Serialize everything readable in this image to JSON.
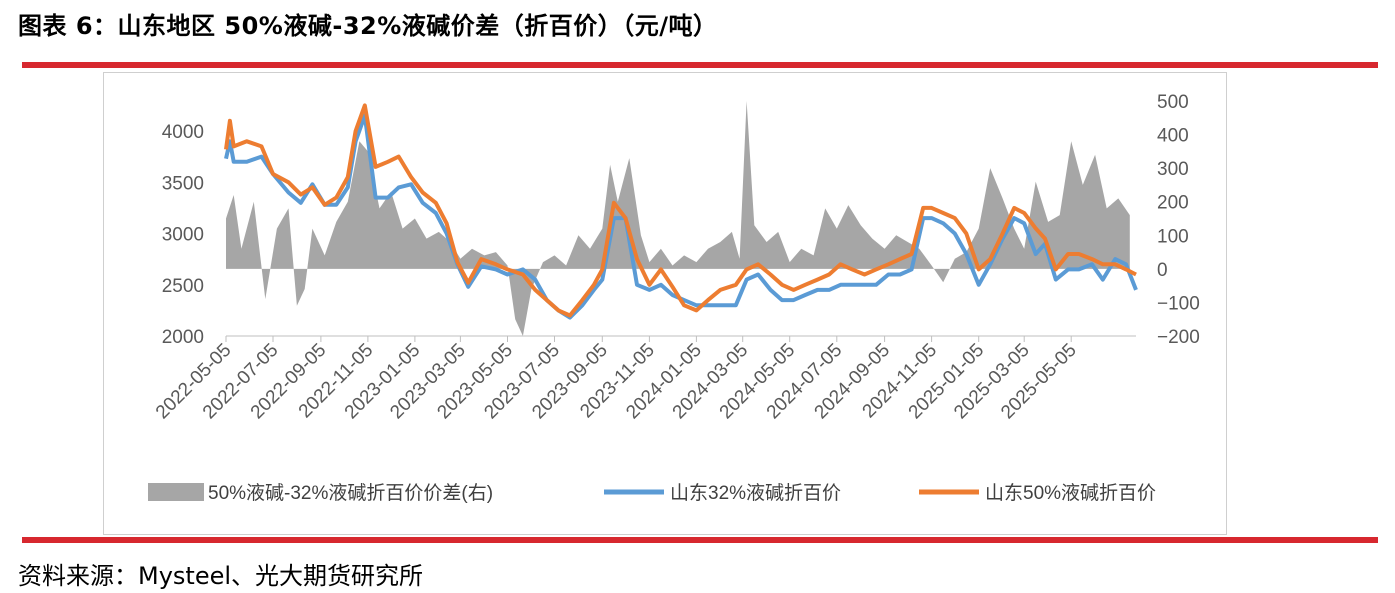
{
  "header": {
    "title": "图表 6：山东地区 50%液碱-32%液碱价差（折百价）（元/吨）"
  },
  "footer": {
    "source": "资料来源：Mysteel、光大期货研究所"
  },
  "colors": {
    "accent_rule": "#d7282f",
    "spread_area": "#a6a6a6",
    "line_32": "#5b9bd5",
    "line_50": "#ed7d31"
  },
  "chart_data": {
    "type": "line",
    "title": "",
    "xlabel": "",
    "ylabel": "",
    "y_left": {
      "range": [
        2000,
        4300
      ],
      "ticks": [
        "2000",
        "2500",
        "3000",
        "3500",
        "4000"
      ]
    },
    "y_right": {
      "range": [
        -200,
        500
      ],
      "ticks": [
        "-200",
        "-100",
        "0",
        "100",
        "200",
        "300",
        "400",
        "500"
      ]
    },
    "x_range": [
      "2022-05-05",
      "2025-07-28"
    ],
    "x_ticks": [
      "2022-05-05",
      "2022-07-05",
      "2022-09-05",
      "2022-11-05",
      "2023-01-05",
      "2023-03-05",
      "2023-05-05",
      "2023-07-05",
      "2023-09-05",
      "2023-11-05",
      "2024-01-05",
      "2024-03-05",
      "2024-05-05",
      "2024-07-05",
      "2024-09-05",
      "2024-11-05",
      "2025-01-05",
      "2025-03-05",
      "2025-05-05"
    ],
    "legend_position": "bottom",
    "grid": false,
    "series": [
      {
        "name": "50%液碱-32%液碱折百价价差(右)",
        "type": "area",
        "axis": "right",
        "x": [
          "2022-05-05",
          "2022-05-15",
          "2022-05-25",
          "2022-06-10",
          "2022-06-25",
          "2022-07-10",
          "2022-07-25",
          "2022-08-05",
          "2022-08-15",
          "2022-08-25",
          "2022-09-10",
          "2022-09-25",
          "2022-10-10",
          "2022-10-25",
          "2022-11-05",
          "2022-11-20",
          "2022-12-05",
          "2022-12-20",
          "2023-01-05",
          "2023-01-20",
          "2023-02-05",
          "2023-02-20",
          "2023-03-05",
          "2023-03-20",
          "2023-04-05",
          "2023-04-20",
          "2023-05-05",
          "2023-05-15",
          "2023-05-25",
          "2023-06-05",
          "2023-06-20",
          "2023-07-05",
          "2023-07-20",
          "2023-08-05",
          "2023-08-20",
          "2023-09-05",
          "2023-09-15",
          "2023-09-25",
          "2023-10-10",
          "2023-10-25",
          "2023-11-05",
          "2023-11-20",
          "2023-12-05",
          "2023-12-20",
          "2024-01-05",
          "2024-01-20",
          "2024-02-05",
          "2024-02-20",
          "2024-03-01",
          "2024-03-10",
          "2024-03-20",
          "2024-04-05",
          "2024-04-20",
          "2024-05-05",
          "2024-05-20",
          "2024-06-05",
          "2024-06-20",
          "2024-07-05",
          "2024-07-20",
          "2024-08-05",
          "2024-08-20",
          "2024-09-05",
          "2024-09-20",
          "2024-10-05",
          "2024-10-20",
          "2024-11-05",
          "2024-11-20",
          "2024-12-05",
          "2024-12-20",
          "2025-01-05",
          "2025-01-20",
          "2025-02-05",
          "2025-02-20",
          "2025-03-05",
          "2025-03-20",
          "2025-04-05",
          "2025-04-20",
          "2025-05-05",
          "2025-05-20",
          "2025-06-05",
          "2025-06-20",
          "2025-07-05",
          "2025-07-20"
        ],
        "values": [
          150,
          220,
          60,
          200,
          -90,
          120,
          180,
          -110,
          -60,
          120,
          40,
          140,
          200,
          380,
          350,
          180,
          230,
          120,
          150,
          90,
          110,
          80,
          30,
          60,
          40,
          50,
          10,
          -150,
          -200,
          -60,
          20,
          40,
          10,
          100,
          60,
          120,
          310,
          200,
          330,
          100,
          20,
          60,
          10,
          40,
          20,
          60,
          80,
          110,
          30,
          500,
          130,
          80,
          110,
          20,
          60,
          40,
          180,
          120,
          190,
          130,
          90,
          60,
          100,
          80,
          60,
          10,
          -40,
          30,
          50,
          120,
          300,
          210,
          120,
          60,
          260,
          140,
          160,
          380,
          250,
          340,
          180,
          210,
          160
        ]
      },
      {
        "name": "山东32%液碱折百价",
        "type": "line",
        "axis": "left",
        "x": [
          "2022-05-05",
          "2022-05-10",
          "2022-05-15",
          "2022-06-01",
          "2022-06-20",
          "2022-07-05",
          "2022-07-25",
          "2022-08-10",
          "2022-08-25",
          "2022-09-10",
          "2022-09-25",
          "2022-10-10",
          "2022-10-20",
          "2022-11-01",
          "2022-11-15",
          "2022-12-01",
          "2022-12-15",
          "2022-12-31",
          "2023-01-15",
          "2023-02-01",
          "2023-02-15",
          "2023-03-01",
          "2023-03-15",
          "2023-04-01",
          "2023-04-20",
          "2023-05-05",
          "2023-05-25",
          "2023-06-10",
          "2023-06-25",
          "2023-07-10",
          "2023-07-25",
          "2023-08-10",
          "2023-08-25",
          "2023-09-05",
          "2023-09-20",
          "2023-10-05",
          "2023-10-20",
          "2023-11-05",
          "2023-11-20",
          "2023-12-05",
          "2023-12-20",
          "2024-01-05",
          "2024-01-20",
          "2024-02-05",
          "2024-02-25",
          "2024-03-10",
          "2024-03-25",
          "2024-04-10",
          "2024-04-25",
          "2024-05-10",
          "2024-05-25",
          "2024-06-10",
          "2024-06-25",
          "2024-07-10",
          "2024-07-25",
          "2024-08-10",
          "2024-08-25",
          "2024-09-10",
          "2024-09-25",
          "2024-10-10",
          "2024-10-25",
          "2024-11-05",
          "2024-11-20",
          "2024-12-05",
          "2024-12-20",
          "2025-01-05",
          "2025-01-20",
          "2025-02-05",
          "2025-02-20",
          "2025-03-05",
          "2025-03-20",
          "2025-04-01",
          "2025-04-15",
          "2025-05-01",
          "2025-05-15",
          "2025-06-01",
          "2025-06-15",
          "2025-07-01",
          "2025-07-15",
          "2025-07-28"
        ],
        "values": [
          3730,
          3900,
          3700,
          3700,
          3750,
          3580,
          3400,
          3300,
          3480,
          3280,
          3280,
          3450,
          3900,
          4150,
          3350,
          3350,
          3450,
          3480,
          3300,
          3200,
          3000,
          2700,
          2480,
          2680,
          2650,
          2600,
          2650,
          2550,
          2350,
          2250,
          2180,
          2300,
          2450,
          2550,
          3150,
          3150,
          2500,
          2450,
          2500,
          2400,
          2350,
          2300,
          2300,
          2300,
          2300,
          2550,
          2600,
          2450,
          2350,
          2350,
          2400,
          2450,
          2450,
          2500,
          2500,
          2500,
          2500,
          2600,
          2600,
          2650,
          3150,
          3150,
          3100,
          3000,
          2800,
          2500,
          2700,
          2950,
          3150,
          3100,
          2800,
          2900,
          2550,
          2650,
          2650,
          2700,
          2550,
          2750,
          2700,
          2450
        ]
      },
      {
        "name": "山东50%液碱折百价",
        "type": "line",
        "axis": "left",
        "x": [
          "2022-05-05",
          "2022-05-10",
          "2022-05-15",
          "2022-06-01",
          "2022-06-20",
          "2022-07-05",
          "2022-07-25",
          "2022-08-10",
          "2022-08-25",
          "2022-09-10",
          "2022-09-25",
          "2022-10-10",
          "2022-10-20",
          "2022-11-01",
          "2022-11-15",
          "2022-12-01",
          "2022-12-15",
          "2022-12-31",
          "2023-01-15",
          "2023-02-01",
          "2023-02-15",
          "2023-03-01",
          "2023-03-15",
          "2023-04-01",
          "2023-04-20",
          "2023-05-05",
          "2023-05-25",
          "2023-06-10",
          "2023-06-25",
          "2023-07-10",
          "2023-07-25",
          "2023-08-10",
          "2023-08-25",
          "2023-09-05",
          "2023-09-20",
          "2023-10-05",
          "2023-10-20",
          "2023-11-05",
          "2023-11-20",
          "2023-12-05",
          "2023-12-20",
          "2024-01-05",
          "2024-01-20",
          "2024-02-05",
          "2024-02-25",
          "2024-03-10",
          "2024-03-25",
          "2024-04-10",
          "2024-04-25",
          "2024-05-10",
          "2024-05-25",
          "2024-06-10",
          "2024-06-25",
          "2024-07-10",
          "2024-07-25",
          "2024-08-10",
          "2024-08-25",
          "2024-09-10",
          "2024-09-25",
          "2024-10-10",
          "2024-10-25",
          "2024-11-05",
          "2024-11-20",
          "2024-12-05",
          "2024-12-20",
          "2025-01-05",
          "2025-01-20",
          "2025-02-05",
          "2025-02-20",
          "2025-03-05",
          "2025-03-20",
          "2025-04-01",
          "2025-04-15",
          "2025-05-01",
          "2025-05-15",
          "2025-06-01",
          "2025-06-15",
          "2025-07-01",
          "2025-07-15",
          "2025-07-28"
        ],
        "values": [
          3820,
          4100,
          3850,
          3900,
          3850,
          3580,
          3500,
          3380,
          3450,
          3280,
          3350,
          3550,
          4000,
          4250,
          3650,
          3700,
          3750,
          3550,
          3400,
          3300,
          3100,
          2720,
          2520,
          2750,
          2700,
          2650,
          2600,
          2450,
          2350,
          2250,
          2200,
          2350,
          2500,
          2650,
          3300,
          3150,
          2750,
          2500,
          2650,
          2480,
          2300,
          2250,
          2350,
          2450,
          2500,
          2650,
          2700,
          2600,
          2500,
          2450,
          2500,
          2550,
          2600,
          2700,
          2650,
          2600,
          2650,
          2700,
          2750,
          2800,
          3250,
          3250,
          3200,
          3150,
          3000,
          2650,
          2750,
          3000,
          3250,
          3200,
          3050,
          2950,
          2650,
          2800,
          2800,
          2750,
          2700,
          2700,
          2650,
          2600
        ]
      }
    ]
  }
}
